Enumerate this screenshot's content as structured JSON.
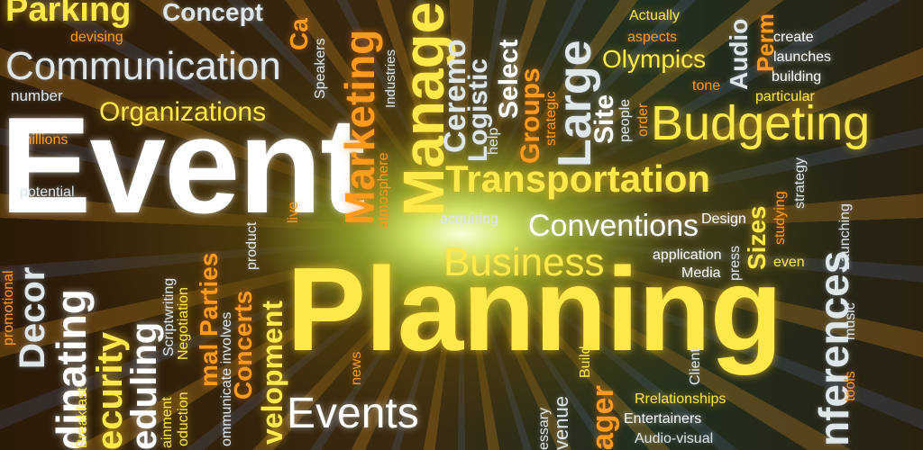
{
  "words": {
    "parking": "Parking",
    "concept": "Concept",
    "devising": "devising",
    "communication": "Communication",
    "number": "number",
    "organizations": "Organizations",
    "millions": "millions",
    "event": "Event",
    "potential": "potential",
    "marketing": "Marketing",
    "management": "Manage",
    "ceremony": "Ceremo",
    "logistics": "Logistic",
    "select": "Select",
    "groups": "Groups",
    "large": "Large",
    "site": "Site",
    "actually": "Actually",
    "aspects": "aspects",
    "olympics": "Olympics",
    "tone": "tone",
    "create": "create",
    "launches": "launches",
    "building": "building",
    "particular": "particular",
    "budgeting": "Budgeting",
    "transportation": "Transportation",
    "acquiring": "acquiring",
    "conventions": "Conventions",
    "design": "Design",
    "business": "Business",
    "application": "application",
    "media": "Media",
    "sizes": "Sizes",
    "planning": "Planning",
    "events": "Events",
    "relationships": "Rrelationships",
    "entertainers": "Entertainers",
    "audio_visual": "Audio-visual",
    "speakers": "Speakers",
    "industries": "Industries",
    "atmosphere": "atmosphere",
    "help": "help",
    "strategic": "strategic",
    "people": "people",
    "order": "order",
    "strategy": "strategy",
    "studying": "studying",
    "even": "even",
    "conferences": "nferences",
    "launching": "Launching",
    "music": "music",
    "tools": "tools",
    "promotional": "promotional",
    "decor": "Decor",
    "coordinating": "dinating",
    "security": "ecurity",
    "scheduling": "eduling",
    "breakfast": "Breakfast",
    "entertainment": "ainment",
    "scriptwriting": "Scriptwriting",
    "negotiation": "Negotiation",
    "production": "oduction",
    "parties": "mal Parties",
    "communicate": "ommunicate involves",
    "concerts": "Concerts",
    "development": "velopment",
    "product": "product",
    "live": "live",
    "news": "news",
    "build": "Build",
    "client": "Client",
    "press": "press",
    "manager": "ager",
    "venue": "venue",
    "necessary": "essary"
  }
}
